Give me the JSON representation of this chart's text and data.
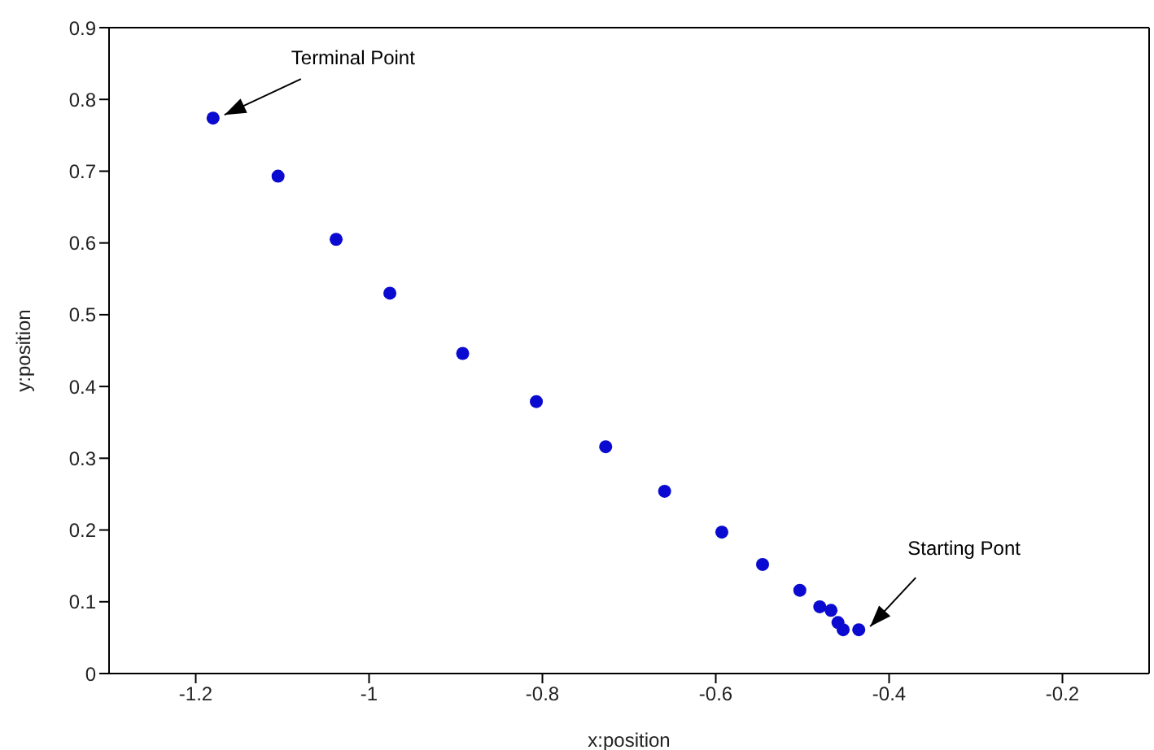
{
  "chart_data": {
    "type": "scatter",
    "xlabel": "x:position",
    "ylabel": "y:position",
    "x": [
      -1.18,
      -1.105,
      -1.038,
      -0.976,
      -0.892,
      -0.807,
      -0.727,
      -0.659,
      -0.593,
      -0.546,
      -0.503,
      -0.48,
      -0.467,
      -0.459,
      -0.453,
      -0.435
    ],
    "series": [
      {
        "color": "#0a0ad0",
        "values": [
          0.774,
          0.693,
          0.605,
          0.53,
          0.446,
          0.379,
          0.316,
          0.254,
          0.197,
          0.152,
          0.116,
          0.093,
          0.088,
          0.071,
          0.061,
          0.061
        ]
      }
    ],
    "xlim": [
      -1.3,
      -0.1
    ],
    "xticks": [
      -1.2,
      -1,
      -0.8,
      -0.6,
      -0.4,
      -0.2
    ],
    "ylim": [
      0,
      0.9
    ],
    "yticks": [
      0,
      0.1,
      0.2,
      0.3,
      0.4,
      0.5,
      0.6,
      0.7,
      0.8,
      0.9
    ],
    "marker": "circle",
    "annotations": [
      {
        "text": "Terminal Point",
        "x": -1.18,
        "y": 0.774
      },
      {
        "text": "Starting Pont",
        "x": -0.435,
        "y": 0.061
      }
    ]
  }
}
